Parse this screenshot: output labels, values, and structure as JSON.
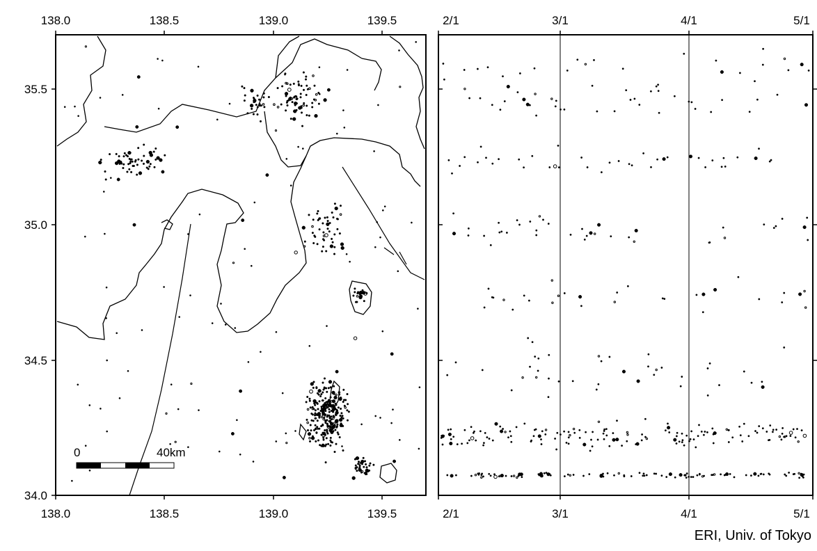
{
  "map": {
    "lon_ticks": [
      "138.0",
      "138.5",
      "139.0",
      "139.5"
    ],
    "lon_values": [
      138.0,
      138.5,
      139.0,
      139.5
    ],
    "lat_ticks": [
      "34.0",
      "34.5",
      "35.0",
      "35.5"
    ],
    "lat_values": [
      34.0,
      34.5,
      35.0,
      35.5
    ],
    "lon_range": [
      138.0,
      139.7
    ],
    "lat_range": [
      34.0,
      35.7
    ],
    "scale_bar": {
      "start_label": "0",
      "end_label": "40km",
      "length_km": 40
    },
    "colors": {
      "coastline": "#000000",
      "event_marker": "#000000",
      "background": "#ffffff"
    }
  },
  "timeline": {
    "date_ticks": [
      "2/1",
      "3/1",
      "4/1",
      "5/1"
    ],
    "month_dividers": [
      "3/1",
      "4/1"
    ],
    "time_range": [
      "2/1",
      "5/1"
    ],
    "lat_range": [
      34.0,
      35.7
    ]
  },
  "credit": "ERI, Univ. of Tokyo"
}
